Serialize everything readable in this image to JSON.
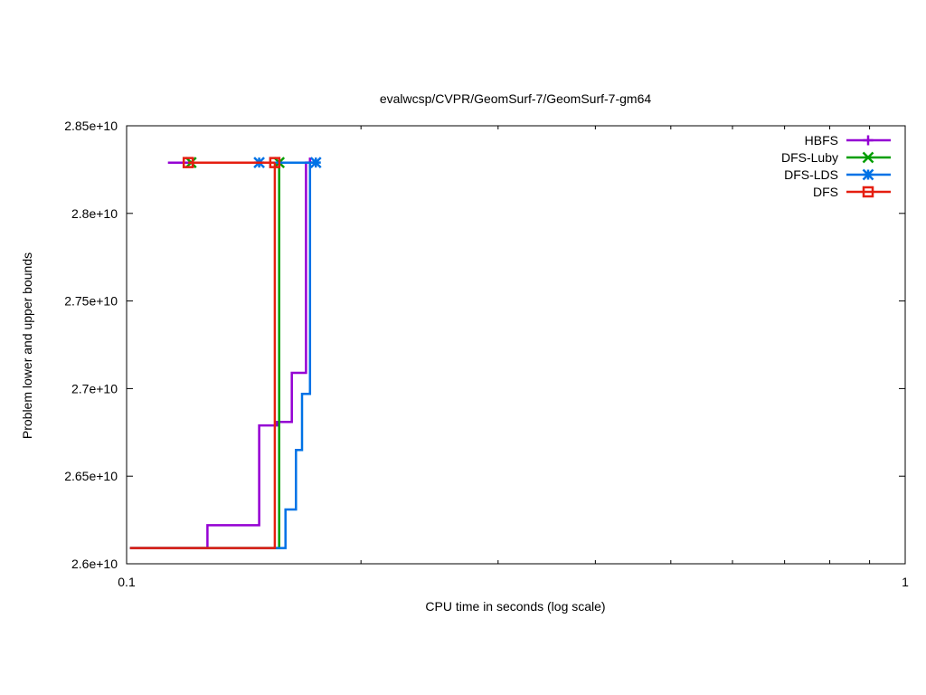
{
  "chart_data": {
    "type": "line",
    "title": "evalwcsp/CVPR/GeomSurf-7/GeomSurf-7-gm64",
    "xlabel": "CPU time in seconds (log scale)",
    "ylabel": "Problem lower and upper bounds",
    "x_scale": "log",
    "xlim": [
      0.1,
      1
    ],
    "ylim": [
      26000000000,
      28500000000
    ],
    "x_ticks": [
      0.1,
      1
    ],
    "x_tick_labels": [
      "0.1",
      "1"
    ],
    "y_ticks": [
      26000000000,
      26500000000,
      27000000000,
      27500000000,
      28000000000,
      28500000000
    ],
    "y_tick_labels": [
      "2.6e+10",
      "2.65e+10",
      "2.7e+10",
      "2.75e+10",
      "2.8e+10",
      "2.85e+10"
    ],
    "grid": false,
    "legend_position": "top-right",
    "series": [
      {
        "name": "HBFS",
        "color": "#9400d3",
        "marker": "plus",
        "upper": [
          [
            0.113,
            28290000000
          ],
          [
            0.172,
            28290000000
          ]
        ],
        "lower": [
          [
            0.101,
            26090000000
          ],
          [
            0.127,
            26090000000
          ],
          [
            0.127,
            26220000000
          ],
          [
            0.148,
            26220000000
          ],
          [
            0.148,
            26790000000
          ],
          [
            0.156,
            26790000000
          ],
          [
            0.156,
            26810000000
          ],
          [
            0.163,
            26810000000
          ],
          [
            0.163,
            27090000000
          ],
          [
            0.17,
            27090000000
          ],
          [
            0.17,
            28290000000
          ]
        ],
        "markers": [
          [
            0.172,
            28290000000
          ]
        ]
      },
      {
        "name": "DFS-Luby",
        "color": "#009e00",
        "marker": "x",
        "upper": [
          [
            0.12,
            28290000000
          ],
          [
            0.157,
            28290000000
          ]
        ],
        "lower": [
          [
            0.101,
            26090000000
          ],
          [
            0.157,
            26090000000
          ],
          [
            0.157,
            28290000000
          ]
        ],
        "markers": [
          [
            0.121,
            28290000000
          ],
          [
            0.157,
            28290000000
          ]
        ]
      },
      {
        "name": "DFS-LDS",
        "color": "#0072e6",
        "marker": "star",
        "upper": [
          [
            0.12,
            28290000000
          ],
          [
            0.176,
            28290000000
          ]
        ],
        "lower": [
          [
            0.101,
            26090000000
          ],
          [
            0.16,
            26090000000
          ],
          [
            0.16,
            26310000000
          ],
          [
            0.165,
            26310000000
          ],
          [
            0.165,
            26650000000
          ],
          [
            0.168,
            26650000000
          ],
          [
            0.168,
            26970000000
          ],
          [
            0.172,
            26970000000
          ],
          [
            0.172,
            28290000000
          ]
        ],
        "markers": [
          [
            0.148,
            28290000000
          ],
          [
            0.175,
            28290000000
          ]
        ]
      },
      {
        "name": "DFS",
        "color": "#e51e10",
        "marker": "square",
        "upper": [
          [
            0.12,
            28290000000
          ],
          [
            0.155,
            28290000000
          ]
        ],
        "lower": [
          [
            0.101,
            26090000000
          ],
          [
            0.155,
            26090000000
          ],
          [
            0.155,
            28290000000
          ]
        ],
        "markers": [
          [
            0.12,
            28290000000
          ],
          [
            0.155,
            28290000000
          ]
        ]
      }
    ]
  }
}
